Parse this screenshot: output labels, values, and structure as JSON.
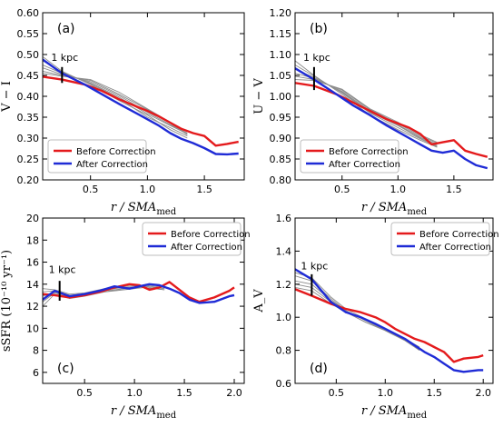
{
  "figure": {
    "legend_labels": [
      "Before Correction",
      "After Correction"
    ],
    "series_colors": {
      "before": "#e41a1c",
      "after": "#1f2bd6",
      "sample": "#8c8c8c"
    },
    "x_axis_label": "r / SMA",
    "x_axis_label_sub": "med"
  },
  "chart_data": [
    {
      "type": "line",
      "panel": "(a)",
      "ylabel": "V − I",
      "xlim": [
        0.08,
        1.85
      ],
      "ylim": [
        0.2,
        0.6
      ],
      "xticks": [
        0.5,
        1.0,
        1.5
      ],
      "xtick_labels": [
        "0.5",
        "1.0",
        "1.5"
      ],
      "yticks": [
        0.2,
        0.25,
        0.3,
        0.35,
        0.4,
        0.45,
        0.5,
        0.55,
        0.6
      ],
      "ytick_labels": [
        "0.20",
        "0.25",
        "0.30",
        "0.35",
        "0.40",
        "0.45",
        "0.50",
        "0.55",
        "0.60"
      ],
      "annotation": {
        "text": "1 kpc",
        "x": 0.25,
        "y_bottom": 0.432,
        "y_top": 0.47,
        "label_y": 0.485
      },
      "legend_position": "lower-left",
      "series": [
        {
          "name": "Before Correction",
          "x": [
            0.08,
            0.25,
            0.45,
            0.6,
            0.75,
            0.9,
            1.0,
            1.1,
            1.2,
            1.3,
            1.4,
            1.5,
            1.6,
            1.7,
            1.8
          ],
          "y": [
            0.447,
            0.44,
            0.428,
            0.413,
            0.393,
            0.376,
            0.365,
            0.352,
            0.337,
            0.322,
            0.312,
            0.305,
            0.282,
            0.286,
            0.291
          ]
        },
        {
          "name": "After Correction",
          "x": [
            0.08,
            0.25,
            0.45,
            0.6,
            0.75,
            0.9,
            1.0,
            1.1,
            1.2,
            1.3,
            1.4,
            1.5,
            1.6,
            1.7,
            1.8
          ],
          "y": [
            0.488,
            0.455,
            0.428,
            0.405,
            0.382,
            0.36,
            0.345,
            0.33,
            0.312,
            0.298,
            0.288,
            0.276,
            0.262,
            0.261,
            0.263
          ]
        }
      ],
      "sample_lines": [
        {
          "x": [
            0.08,
            0.25,
            0.5,
            0.75,
            1.0,
            1.2,
            1.35
          ],
          "y": [
            0.495,
            0.46,
            0.428,
            0.39,
            0.355,
            0.32,
            0.3
          ]
        },
        {
          "x": [
            0.08,
            0.25,
            0.5,
            0.75,
            1.0,
            1.2,
            1.35
          ],
          "y": [
            0.485,
            0.458,
            0.43,
            0.395,
            0.35,
            0.325,
            0.305
          ]
        },
        {
          "x": [
            0.08,
            0.25,
            0.5,
            0.75,
            1.0,
            1.2,
            1.35
          ],
          "y": [
            0.475,
            0.455,
            0.432,
            0.398,
            0.358,
            0.33,
            0.31
          ]
        },
        {
          "x": [
            0.08,
            0.25,
            0.5,
            0.75,
            1.0,
            1.2,
            1.35
          ],
          "y": [
            0.468,
            0.452,
            0.435,
            0.402,
            0.362,
            0.332,
            0.312
          ]
        },
        {
          "x": [
            0.08,
            0.25,
            0.5,
            0.75,
            1.0,
            1.2,
            1.35
          ],
          "y": [
            0.46,
            0.45,
            0.438,
            0.405,
            0.368,
            0.335,
            0.308
          ]
        },
        {
          "x": [
            0.08,
            0.25,
            0.5,
            0.75,
            1.0,
            1.2,
            1.35
          ],
          "y": [
            0.455,
            0.448,
            0.44,
            0.41,
            0.37,
            0.338,
            0.315
          ]
        }
      ]
    },
    {
      "type": "line",
      "panel": "(b)",
      "ylabel": "U − V",
      "xlim": [
        0.08,
        1.85
      ],
      "ylim": [
        0.8,
        1.2
      ],
      "xticks": [
        0.5,
        1.0,
        1.5
      ],
      "xtick_labels": [
        "0.5",
        "1.0",
        "1.5"
      ],
      "yticks": [
        0.8,
        0.85,
        0.9,
        0.95,
        1.0,
        1.05,
        1.1,
        1.15,
        1.2
      ],
      "ytick_labels": [
        "0.80",
        "0.85",
        "0.90",
        "0.95",
        "1.00",
        "1.05",
        "1.10",
        "1.15",
        "1.20"
      ],
      "annotation": {
        "text": "1 kpc",
        "x": 0.25,
        "y_bottom": 1.015,
        "y_top": 1.07,
        "label_y": 1.085
      },
      "legend_position": "lower-left",
      "series": [
        {
          "name": "Before Correction",
          "x": [
            0.08,
            0.25,
            0.45,
            0.6,
            0.75,
            0.9,
            1.0,
            1.1,
            1.2,
            1.3,
            1.4,
            1.5,
            1.6,
            1.7,
            1.8
          ],
          "y": [
            1.032,
            1.025,
            1.005,
            0.985,
            0.965,
            0.945,
            0.935,
            0.925,
            0.91,
            0.885,
            0.89,
            0.895,
            0.87,
            0.862,
            0.855
          ]
        },
        {
          "name": "After Correction",
          "x": [
            0.08,
            0.25,
            0.45,
            0.6,
            0.75,
            0.9,
            1.0,
            1.1,
            1.2,
            1.3,
            1.4,
            1.5,
            1.6,
            1.7,
            1.8
          ],
          "y": [
            1.067,
            1.04,
            1.005,
            0.978,
            0.955,
            0.93,
            0.915,
            0.9,
            0.885,
            0.87,
            0.865,
            0.87,
            0.85,
            0.835,
            0.828
          ]
        }
      ],
      "sample_lines": [
        {
          "x": [
            0.08,
            0.25,
            0.5,
            0.75,
            1.0,
            1.2,
            1.35
          ],
          "y": [
            1.085,
            1.05,
            1.005,
            0.955,
            0.92,
            0.895,
            0.878
          ]
        },
        {
          "x": [
            0.08,
            0.25,
            0.5,
            0.75,
            1.0,
            1.2,
            1.35
          ],
          "y": [
            1.075,
            1.048,
            1.008,
            0.96,
            0.925,
            0.898,
            0.88
          ]
        },
        {
          "x": [
            0.08,
            0.25,
            0.5,
            0.75,
            1.0,
            1.2,
            1.35
          ],
          "y": [
            1.065,
            1.045,
            1.01,
            0.962,
            0.93,
            0.9,
            0.882
          ]
        },
        {
          "x": [
            0.08,
            0.25,
            0.5,
            0.75,
            1.0,
            1.2,
            1.35
          ],
          "y": [
            1.055,
            1.043,
            1.012,
            0.965,
            0.932,
            0.902,
            0.885
          ]
        },
        {
          "x": [
            0.08,
            0.25,
            0.5,
            0.75,
            1.0,
            1.2,
            1.35
          ],
          "y": [
            1.048,
            1.04,
            1.015,
            0.968,
            0.935,
            0.905,
            0.888
          ]
        },
        {
          "x": [
            0.08,
            0.25,
            0.5,
            0.75,
            1.0,
            1.2,
            1.35
          ],
          "y": [
            1.04,
            1.038,
            1.017,
            0.97,
            0.938,
            0.908,
            0.89
          ]
        }
      ]
    },
    {
      "type": "line",
      "panel": "(c)",
      "ylabel": "sSFR (10⁻¹⁰ yr⁻¹)",
      "xlim": [
        0.08,
        2.1
      ],
      "ylim": [
        5,
        20
      ],
      "xticks": [
        0.5,
        1.0,
        1.5,
        2.0
      ],
      "xtick_labels": [
        "0.5",
        "1.0",
        "1.5",
        "2.0"
      ],
      "yticks": [
        6,
        8,
        10,
        12,
        14,
        16,
        18,
        20
      ],
      "ytick_labels": [
        "6",
        "8",
        "10",
        "12",
        "14",
        "16",
        "18",
        "20"
      ],
      "annotation": {
        "text": "1 kpc",
        "x": 0.25,
        "y_bottom": 12.5,
        "y_top": 14.3,
        "label_y": 15.0
      },
      "legend_position": "top-right",
      "series": [
        {
          "name": "Before Correction",
          "x": [
            0.08,
            0.2,
            0.35,
            0.5,
            0.65,
            0.8,
            0.95,
            1.05,
            1.15,
            1.25,
            1.35,
            1.45,
            1.55,
            1.65,
            1.8,
            1.95,
            2.0
          ],
          "y": [
            13.1,
            13.0,
            12.8,
            13.0,
            13.3,
            13.7,
            14.0,
            13.9,
            13.5,
            13.7,
            14.2,
            13.5,
            12.8,
            12.4,
            12.8,
            13.4,
            13.7
          ]
        },
        {
          "name": "After Correction",
          "x": [
            0.08,
            0.2,
            0.35,
            0.5,
            0.65,
            0.8,
            0.95,
            1.05,
            1.15,
            1.25,
            1.35,
            1.45,
            1.55,
            1.65,
            1.8,
            1.95,
            2.0
          ],
          "y": [
            12.6,
            13.4,
            12.9,
            13.1,
            13.4,
            13.8,
            13.6,
            13.8,
            14.0,
            13.9,
            13.6,
            13.2,
            12.6,
            12.3,
            12.4,
            12.9,
            13.0
          ]
        }
      ],
      "sample_lines": [
        {
          "x": [
            0.08,
            0.2,
            0.35,
            0.5,
            0.7,
            0.9,
            1.1,
            1.3
          ],
          "y": [
            13.6,
            13.5,
            13.1,
            13.2,
            13.6,
            13.8,
            13.9,
            13.7
          ]
        },
        {
          "x": [
            0.08,
            0.2,
            0.35,
            0.5,
            0.7,
            0.9,
            1.1,
            1.3
          ],
          "y": [
            13.3,
            13.4,
            13.0,
            13.1,
            13.5,
            13.7,
            13.8,
            13.6
          ]
        },
        {
          "x": [
            0.08,
            0.2,
            0.35,
            0.5,
            0.7,
            0.9,
            1.1,
            1.3
          ],
          "y": [
            12.9,
            13.3,
            12.9,
            13.0,
            13.4,
            13.6,
            13.7,
            13.5
          ]
        },
        {
          "x": [
            0.08,
            0.2,
            0.35,
            0.5,
            0.7,
            0.9,
            1.1,
            1.3
          ],
          "y": [
            12.4,
            13.2,
            12.8,
            13.0,
            13.3,
            13.6,
            13.8,
            13.6
          ]
        },
        {
          "x": [
            0.08,
            0.2,
            0.35,
            0.5,
            0.7,
            0.9,
            1.1,
            1.3
          ],
          "y": [
            12.0,
            13.1,
            12.7,
            12.9,
            13.3,
            13.5,
            13.7,
            13.5
          ]
        }
      ]
    },
    {
      "type": "line",
      "panel": "(d)",
      "ylabel": "A_V",
      "xlim": [
        0.08,
        2.1
      ],
      "ylim": [
        0.6,
        1.6
      ],
      "xticks": [
        0.5,
        1.0,
        1.5,
        2.0
      ],
      "xtick_labels": [
        "0.5",
        "1.0",
        "1.5",
        "2.0"
      ],
      "yticks": [
        0.6,
        0.8,
        1.0,
        1.2,
        1.4,
        1.6
      ],
      "ytick_labels": [
        "0.6",
        "0.8",
        "1.0",
        "1.2",
        "1.4",
        "1.6"
      ],
      "annotation": {
        "text": "1 kpc",
        "x": 0.25,
        "y_bottom": 1.13,
        "y_top": 1.26,
        "label_y": 1.29
      },
      "legend_position": "top-right",
      "series": [
        {
          "name": "Before Correction",
          "x": [
            0.08,
            0.25,
            0.45,
            0.6,
            0.75,
            0.9,
            1.0,
            1.1,
            1.2,
            1.3,
            1.4,
            1.5,
            1.6,
            1.7,
            1.8,
            1.95,
            2.0
          ],
          "y": [
            1.17,
            1.13,
            1.08,
            1.05,
            1.03,
            1.0,
            0.97,
            0.93,
            0.9,
            0.87,
            0.85,
            0.82,
            0.79,
            0.73,
            0.75,
            0.76,
            0.77
          ]
        },
        {
          "name": "After Correction",
          "x": [
            0.08,
            0.25,
            0.45,
            0.6,
            0.75,
            0.9,
            1.0,
            1.1,
            1.2,
            1.3,
            1.4,
            1.5,
            1.6,
            1.7,
            1.8,
            1.95,
            2.0
          ],
          "y": [
            1.29,
            1.23,
            1.09,
            1.03,
            1.0,
            0.96,
            0.93,
            0.9,
            0.87,
            0.83,
            0.79,
            0.76,
            0.72,
            0.68,
            0.67,
            0.68,
            0.68
          ]
        }
      ],
      "sample_lines": [
        {
          "x": [
            0.08,
            0.25,
            0.45,
            0.6,
            0.8,
            1.0,
            1.2,
            1.35
          ],
          "y": [
            1.27,
            1.24,
            1.12,
            1.05,
            0.99,
            0.93,
            0.87,
            0.81
          ]
        },
        {
          "x": [
            0.08,
            0.25,
            0.45,
            0.6,
            0.8,
            1.0,
            1.2,
            1.35
          ],
          "y": [
            1.25,
            1.22,
            1.11,
            1.04,
            0.98,
            0.92,
            0.86,
            0.8
          ]
        },
        {
          "x": [
            0.08,
            0.25,
            0.45,
            0.6,
            0.8,
            1.0,
            1.2,
            1.35
          ],
          "y": [
            1.22,
            1.2,
            1.1,
            1.04,
            0.98,
            0.93,
            0.87,
            0.82
          ]
        },
        {
          "x": [
            0.08,
            0.25,
            0.45,
            0.6,
            0.8,
            1.0,
            1.2,
            1.35
          ],
          "y": [
            1.2,
            1.18,
            1.09,
            1.03,
            0.97,
            0.92,
            0.86,
            0.81
          ]
        },
        {
          "x": [
            0.08,
            0.25,
            0.45,
            0.6,
            0.8,
            1.0,
            1.2,
            1.35
          ],
          "y": [
            1.18,
            1.16,
            1.08,
            1.03,
            0.97,
            0.92,
            0.86,
            0.8
          ]
        }
      ]
    }
  ]
}
